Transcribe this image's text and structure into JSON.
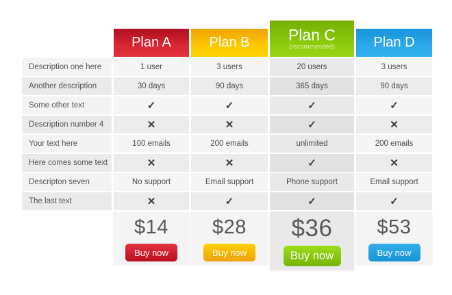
{
  "page": {
    "background": "#ffffff"
  },
  "glyphs": {
    "check": "✓",
    "cross": "✕"
  },
  "feature_labels": [
    "Description one here",
    "Another description",
    "Some other text",
    "Description number 4",
    "Your text here",
    "Here comes some text",
    "Descripton seven",
    "The last text"
  ],
  "plans": [
    {
      "name": "Plan A",
      "recommended": false,
      "cells": [
        "1 user",
        "30 days",
        "✓",
        "✕",
        "100 emails",
        "✕",
        "No support",
        "✕"
      ],
      "price": "$14",
      "buy_label": "Buy now",
      "colors": {
        "header_top": "#ad0f1f",
        "header_bottom": "#e2333f",
        "button_top": "#e5333f",
        "button_bottom": "#bb0e1e"
      }
    },
    {
      "name": "Plan B",
      "recommended": false,
      "cells": [
        "3 users",
        "90 days",
        "✓",
        "✕",
        "200 emails",
        "✕",
        "Email support",
        "✓"
      ],
      "price": "$28",
      "buy_label": "Buy now",
      "colors": {
        "header_top": "#efa303",
        "header_bottom": "#ffd103",
        "button_top": "#ffd103",
        "button_bottom": "#eea303"
      }
    },
    {
      "name": "Plan C",
      "subtitle": "(recommended)",
      "recommended": true,
      "cells": [
        "20 users",
        "365 days",
        "✓",
        "✓",
        "unlimited",
        "✓",
        "Phone support",
        "✓"
      ],
      "price": "$36",
      "buy_label": "Buy now",
      "colors": {
        "header_top": "#72b005",
        "header_bottom": "#99d513",
        "button_top": "#9cdd1a",
        "button_bottom": "#77b406"
      }
    },
    {
      "name": "Plan D",
      "recommended": false,
      "cells": [
        "3 users",
        "90 days",
        "✓",
        "✕",
        "200 emails",
        "✕",
        "Email support",
        "✓"
      ],
      "price": "$53",
      "buy_label": "Buy now",
      "colors": {
        "header_top": "#1793d8",
        "header_bottom": "#33b0ee",
        "button_top": "#35aeec",
        "button_bottom": "#1793d8"
      }
    }
  ]
}
